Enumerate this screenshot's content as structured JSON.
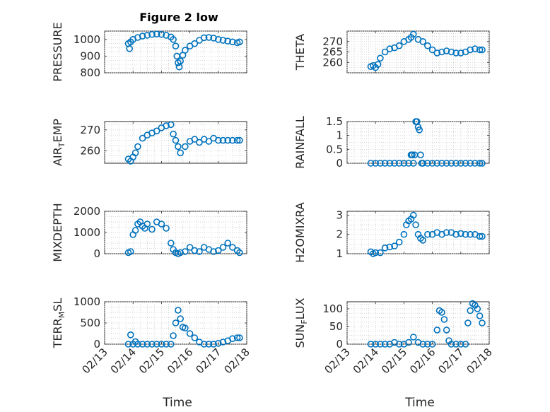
{
  "figure": {
    "title": "Figure 2 low",
    "xlabel": "Time",
    "marker_color": "#0072BD",
    "x_ticks": [
      "02/13",
      "02/14",
      "02/15",
      "02/16",
      "02/17",
      "02/18"
    ],
    "x_tick_days": [
      13,
      14,
      15,
      16,
      17,
      18
    ],
    "xlim_days": [
      13,
      18
    ]
  },
  "chart_data": [
    {
      "type": "scatter",
      "ylabel": "PRESSURE",
      "ylim": [
        800,
        1050
      ],
      "yticks": [
        800,
        900,
        1000
      ],
      "ytick_labels": [
        "800",
        "900",
        "1000"
      ],
      "grid": true,
      "x": [
        "02/13 20:00",
        "02/13 21:00",
        "02/13 22:00",
        "02/14 00:00",
        "02/14 04:00",
        "02/14 08:00",
        "02/14 12:00",
        "02/14 16:00",
        "02/14 20:00",
        "02/15 00:00",
        "02/15 04:00",
        "02/15 08:00",
        "02/15 10:00",
        "02/15 12:00",
        "02/15 13:00",
        "02/15 14:00",
        "02/15 15:00",
        "02/15 16:00",
        "02/15 18:00",
        "02/15 20:00",
        "02/16 00:00",
        "02/16 04:00",
        "02/16 08:00",
        "02/16 12:00",
        "02/16 16:00",
        "02/16 20:00",
        "02/17 00:00",
        "02/17 04:00",
        "02/17 08:00",
        "02/17 12:00",
        "02/17 16:00",
        "02/17 18:00"
      ],
      "y": [
        975,
        945,
        985,
        1000,
        1012,
        1020,
        1025,
        1030,
        1032,
        1030,
        1025,
        1015,
        1000,
        960,
        900,
        860,
        835,
        870,
        905,
        935,
        960,
        975,
        995,
        1010,
        1012,
        1008,
        1000,
        995,
        990,
        985,
        980,
        985
      ]
    },
    {
      "type": "scatter",
      "ylabel": "THETA",
      "ylim": [
        255,
        275
      ],
      "yticks": [
        260,
        265,
        270
      ],
      "ytick_labels": [
        "260",
        "265",
        "270"
      ],
      "grid": true,
      "x": [
        "02/13 20:00",
        "02/13 22:00",
        "02/14 00:00",
        "02/14 02:00",
        "02/14 04:00",
        "02/14 08:00",
        "02/14 12:00",
        "02/14 16:00",
        "02/14 20:00",
        "02/15 00:00",
        "02/15 04:00",
        "02/15 06:00",
        "02/15 08:00",
        "02/15 12:00",
        "02/15 16:00",
        "02/15 20:00",
        "02/16 00:00",
        "02/16 04:00",
        "02/16 08:00",
        "02/16 12:00",
        "02/16 16:00",
        "02/16 20:00",
        "02/17 00:00",
        "02/17 04:00",
        "02/17 08:00",
        "02/17 12:00",
        "02/17 16:00",
        "02/17 18:00"
      ],
      "y": [
        258,
        258.5,
        257.5,
        259,
        262,
        265,
        266.5,
        267,
        268,
        270,
        271,
        272,
        273.5,
        271,
        270,
        268,
        266,
        264.5,
        265,
        265.5,
        265,
        264.5,
        264.5,
        265,
        266,
        266.5,
        266,
        266
      ]
    },
    {
      "type": "scatter",
      "ylabel": "AIR_TEMP",
      "ylim": [
        254,
        274
      ],
      "yticks": [
        260,
        270
      ],
      "ytick_labels": [
        "260",
        "270"
      ],
      "grid": true,
      "x": [
        "02/13 20:00",
        "02/13 22:00",
        "02/14 00:00",
        "02/14 02:00",
        "02/14 04:00",
        "02/14 08:00",
        "02/14 12:00",
        "02/14 16:00",
        "02/14 20:00",
        "02/15 00:00",
        "02/15 04:00",
        "02/15 08:00",
        "02/15 10:00",
        "02/15 12:00",
        "02/15 14:00",
        "02/15 16:00",
        "02/15 20:00",
        "02/16 00:00",
        "02/16 04:00",
        "02/16 08:00",
        "02/16 12:00",
        "02/16 16:00",
        "02/16 20:00",
        "02/17 00:00",
        "02/17 04:00",
        "02/17 08:00",
        "02/17 12:00",
        "02/17 16:00",
        "02/17 18:00"
      ],
      "y": [
        256,
        255,
        257,
        259,
        262,
        266,
        267.5,
        268.5,
        269.5,
        271,
        272,
        272.5,
        268,
        265,
        262,
        259,
        262,
        264.5,
        265.5,
        264,
        265.5,
        264.5,
        266,
        265,
        265,
        265,
        265,
        265,
        265
      ]
    },
    {
      "type": "scatter",
      "ylabel": "RAINFALL",
      "ylim": [
        0,
        1.5
      ],
      "yticks": [
        0,
        0.5,
        1,
        1.5
      ],
      "ytick_labels": [
        "0",
        "0.5",
        "1",
        "1.5"
      ],
      "grid": true,
      "x": [
        "02/13 20:00",
        "02/14 00:00",
        "02/14 04:00",
        "02/14 08:00",
        "02/14 12:00",
        "02/14 16:00",
        "02/14 20:00",
        "02/15 00:00",
        "02/15 04:00",
        "02/15 06:00",
        "02/15 07:00",
        "02/15 08:00",
        "02/15 09:00",
        "02/15 10:00",
        "02/15 11:00",
        "02/15 12:00",
        "02/15 13:00",
        "02/15 14:00",
        "02/15 15:00",
        "02/15 16:00",
        "02/15 20:00",
        "02/16 00:00",
        "02/16 04:00",
        "02/16 08:00",
        "02/16 12:00",
        "02/16 16:00",
        "02/16 20:00",
        "02/17 00:00",
        "02/17 04:00",
        "02/17 08:00",
        "02/17 12:00",
        "02/17 16:00",
        "02/17 18:00"
      ],
      "y": [
        0,
        0,
        0,
        0,
        0,
        0,
        0,
        0,
        0,
        0.3,
        0.3,
        0,
        0.3,
        1.5,
        1.5,
        1.3,
        1.2,
        0.3,
        0,
        0,
        0,
        0,
        0,
        0,
        0,
        0,
        0,
        0,
        0,
        0,
        0,
        0,
        0
      ]
    },
    {
      "type": "scatter",
      "ylabel": "MIXDEPTH",
      "ylim": [
        0,
        2000
      ],
      "yticks": [
        0,
        1000,
        2000
      ],
      "ytick_labels": [
        "0",
        "1000",
        "2000"
      ],
      "grid": true,
      "x": [
        "02/13 20:00",
        "02/13 22:00",
        "02/14 00:00",
        "02/14 02:00",
        "02/14 04:00",
        "02/14 06:00",
        "02/14 08:00",
        "02/14 10:00",
        "02/14 12:00",
        "02/14 16:00",
        "02/14 20:00",
        "02/15 00:00",
        "02/15 04:00",
        "02/15 08:00",
        "02/15 10:00",
        "02/15 12:00",
        "02/15 14:00",
        "02/15 16:00",
        "02/15 20:00",
        "02/16 00:00",
        "02/16 04:00",
        "02/16 08:00",
        "02/16 12:00",
        "02/16 16:00",
        "02/16 20:00",
        "02/17 00:00",
        "02/17 04:00",
        "02/17 08:00",
        "02/17 12:00",
        "02/17 16:00",
        "02/17 18:00"
      ],
      "y": [
        50,
        100,
        900,
        1100,
        1400,
        1500,
        1300,
        1200,
        1400,
        1150,
        1500,
        1400,
        1200,
        500,
        200,
        50,
        0,
        50,
        100,
        300,
        150,
        100,
        300,
        200,
        100,
        150,
        300,
        500,
        300,
        150,
        50
      ]
    },
    {
      "type": "scatter",
      "ylabel": "H2OMIXRA",
      "ylim": [
        1,
        3.2
      ],
      "yticks": [
        1,
        2,
        3
      ],
      "ytick_labels": [
        "1",
        "2",
        "3"
      ],
      "grid": true,
      "x": [
        "02/13 20:00",
        "02/13 22:00",
        "02/14 00:00",
        "02/14 04:00",
        "02/14 08:00",
        "02/14 12:00",
        "02/14 16:00",
        "02/14 20:00",
        "02/15 00:00",
        "02/15 02:00",
        "02/15 04:00",
        "02/15 06:00",
        "02/15 08:00",
        "02/15 10:00",
        "02/15 12:00",
        "02/15 14:00",
        "02/15 16:00",
        "02/15 20:00",
        "02/16 00:00",
        "02/16 04:00",
        "02/16 08:00",
        "02/16 12:00",
        "02/16 16:00",
        "02/16 20:00",
        "02/17 00:00",
        "02/17 04:00",
        "02/17 08:00",
        "02/17 12:00",
        "02/17 16:00",
        "02/17 18:00"
      ],
      "y": [
        1.1,
        1.0,
        1.05,
        1.05,
        1.3,
        1.35,
        1.4,
        1.6,
        2.0,
        2.5,
        2.7,
        2.8,
        3.0,
        2.5,
        2.0,
        1.8,
        1.7,
        2.0,
        2.0,
        2.1,
        2.0,
        2.1,
        2.1,
        2.0,
        2.05,
        2.0,
        2.0,
        2.0,
        1.9,
        1.9
      ]
    },
    {
      "type": "scatter",
      "ylabel": "TERR_MSL",
      "ylim": [
        0,
        1000
      ],
      "yticks": [
        0,
        500,
        1000
      ],
      "ytick_labels": [
        "0",
        "500",
        "1000"
      ],
      "grid": true,
      "x": [
        "02/13 20:00",
        "02/13 22:00",
        "02/14 00:00",
        "02/14 02:00",
        "02/14 04:00",
        "02/14 08:00",
        "02/14 12:00",
        "02/14 16:00",
        "02/14 20:00",
        "02/15 00:00",
        "02/15 04:00",
        "02/15 08:00",
        "02/15 10:00",
        "02/15 12:00",
        "02/15 14:00",
        "02/15 16:00",
        "02/15 18:00",
        "02/15 20:00",
        "02/16 00:00",
        "02/16 04:00",
        "02/16 08:00",
        "02/16 12:00",
        "02/16 16:00",
        "02/16 20:00",
        "02/17 00:00",
        "02/17 04:00",
        "02/17 08:00",
        "02/17 12:00",
        "02/17 16:00",
        "02/17 18:00"
      ],
      "y": [
        0,
        220,
        0,
        60,
        0,
        0,
        0,
        0,
        0,
        0,
        0,
        0,
        200,
        500,
        800,
        600,
        400,
        380,
        250,
        150,
        50,
        0,
        0,
        0,
        20,
        50,
        80,
        130,
        150,
        150
      ]
    },
    {
      "type": "scatter",
      "ylabel": "SUN_FLUX",
      "ylim": [
        0,
        120
      ],
      "yticks": [
        0,
        50,
        100
      ],
      "ytick_labels": [
        "0",
        "50",
        "100"
      ],
      "grid": true,
      "x": [
        "02/13 20:00",
        "02/14 00:00",
        "02/14 04:00",
        "02/14 08:00",
        "02/14 12:00",
        "02/14 16:00",
        "02/14 20:00",
        "02/15 00:00",
        "02/15 04:00",
        "02/15 08:00",
        "02/15 12:00",
        "02/15 16:00",
        "02/15 20:00",
        "02/16 00:00",
        "02/16 04:00",
        "02/16 06:00",
        "02/16 08:00",
        "02/16 10:00",
        "02/16 12:00",
        "02/16 14:00",
        "02/16 16:00",
        "02/16 20:00",
        "02/17 00:00",
        "02/17 04:00",
        "02/17 06:00",
        "02/17 08:00",
        "02/17 10:00",
        "02/17 12:00",
        "02/17 14:00",
        "02/17 16:00",
        "02/17 18:00"
      ],
      "y": [
        0,
        0,
        0,
        0,
        0,
        5,
        0,
        0,
        5,
        20,
        5,
        0,
        0,
        0,
        40,
        95,
        90,
        70,
        40,
        10,
        0,
        0,
        0,
        0,
        60,
        95,
        115,
        110,
        100,
        80,
        60
      ]
    }
  ]
}
